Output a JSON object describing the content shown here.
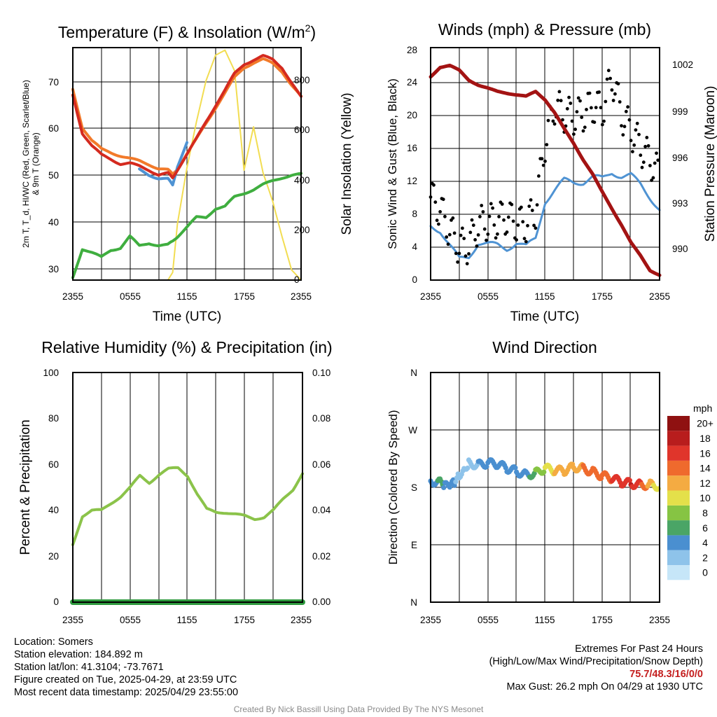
{
  "charts": {
    "temp": {
      "title_main": "Temperature (F) & Insolation (W/m",
      "title_sup": "2",
      "title_end": ")",
      "ylabel_lines": [
        "2m T, T_d, HI/WC (Red, Green, Scarlet/Blue)",
        "& 9m T (Orange)"
      ],
      "y2label": "Solar Insolation (Yellow)",
      "xlabel": "Time (UTC)",
      "yticks": [
        "30",
        "40",
        "50",
        "60",
        "70"
      ],
      "y2ticks": [
        "0",
        "200",
        "400",
        "600",
        "800"
      ],
      "xticks": [
        "2355",
        "0555",
        "1155",
        "1755",
        "2355"
      ]
    },
    "wind": {
      "title": "Winds (mph) & Pressure (mb)",
      "ylabel": "Sonic Wind & Gust (Blue, Black)",
      "y2label": "Station Pressure (Maroon)",
      "xlabel": "Time (UTC)",
      "yticks": [
        "0",
        "4",
        "8",
        "12",
        "16",
        "20",
        "24",
        "28"
      ],
      "y2ticks": [
        "990",
        "993",
        "996",
        "999",
        "1002"
      ],
      "xticks": [
        "2355",
        "0555",
        "1155",
        "1755",
        "2355"
      ]
    },
    "rh": {
      "title": "Relative Humidity (%) & Precipitation (in)",
      "ylabel": "Percent & Precipitation",
      "yticks": [
        "0",
        "20",
        "40",
        "60",
        "80",
        "100"
      ],
      "y2ticks": [
        "0.00",
        "0.02",
        "0.04",
        "0.06",
        "0.08",
        "0.10"
      ],
      "xticks": [
        "2355",
        "0555",
        "1155",
        "1755",
        "2355"
      ]
    },
    "dir": {
      "title": "Wind Direction",
      "ylabel": "Direction (Colored By Speed)",
      "yticks": [
        "N",
        "E",
        "S",
        "W",
        "N"
      ],
      "xticks": [
        "2355",
        "0555",
        "1155",
        "1755",
        "2355"
      ],
      "colorbar_title": "mph",
      "colorbar_labels": [
        "0",
        "2",
        "4",
        "6",
        "8",
        "10",
        "12",
        "14",
        "16",
        "18",
        "20+"
      ],
      "colorbar_colors": [
        "#c6e6f8",
        "#8ec3ea",
        "#4a8fd0",
        "#4aa566",
        "#86c443",
        "#e4e04a",
        "#f4ab42",
        "#ef6a2d",
        "#e0352b",
        "#b81d1d",
        "#8f1111"
      ]
    }
  },
  "chart_data": [
    {
      "type": "line",
      "title": "Temperature (F) & Insolation (W/m2)",
      "xlabel": "Time (UTC)",
      "ylabel": "2m T, Td, HI/WC (Red, Green, Scarlet/Blue) & 9m T (Orange)",
      "y2label": "Solar Insolation (Yellow)",
      "ylim": [
        28,
        77
      ],
      "y2lim": [
        0,
        910
      ],
      "x_categories": [
        "2355",
        "0555",
        "1155",
        "1755",
        "2355"
      ],
      "x_hours": [
        0,
        1,
        2,
        3,
        4,
        5,
        6,
        7,
        8,
        9,
        10,
        10.5,
        11,
        12,
        13,
        14,
        15,
        16,
        17,
        18,
        19,
        20,
        21,
        22,
        23,
        24
      ],
      "series": [
        {
          "name": "2m T",
          "color": "#d42a1f",
          "axis": "left",
          "values": [
            67,
            59,
            56.3,
            54.4,
            53.5,
            52.5,
            52.6,
            52,
            51.2,
            50.2,
            50.5,
            49.5,
            51.3,
            54.5,
            57.8,
            61.4,
            64.8,
            68,
            71.5,
            73.5,
            74.4,
            75.2,
            74.5,
            72.8,
            69.6,
            66.5
          ]
        },
        {
          "name": "9m T",
          "color": "#f27a2a",
          "axis": "left",
          "values": [
            68.2,
            60.2,
            57.4,
            55.6,
            54.9,
            54.2,
            53.6,
            53.1,
            52.4,
            51.5,
            51.2,
            50.3,
            51.5,
            54.6,
            57.7,
            61.1,
            64.3,
            67.4,
            70.7,
            72.8,
            73.8,
            74.5,
            73.7,
            72,
            69.1,
            66.6
          ]
        },
        {
          "name": "Td",
          "color": "#3fae3f",
          "axis": "left",
          "values": [
            28.5,
            34.6,
            33.8,
            32.8,
            34.3,
            34.8,
            37.2,
            35.2,
            35.8,
            35.3,
            35.4,
            36.2,
            37.2,
            39.2,
            41.2,
            41.2,
            43.1,
            43.5,
            45.5,
            46.3,
            47.1,
            48.1,
            48.9,
            49.6,
            50.1,
            50.3
          ]
        },
        {
          "name": "HI/WC",
          "color": "#4f93d3",
          "axis": "left",
          "values": [
            null,
            null,
            null,
            null,
            null,
            null,
            null,
            51.3,
            50.2,
            49.4,
            49.3,
            48,
            52,
            57,
            null,
            null,
            null,
            null,
            null,
            null,
            null,
            null,
            null,
            null,
            null,
            null
          ]
        },
        {
          "name": "Solar Insolation",
          "color": "#f2dd52",
          "axis": "right",
          "values": [
            0,
            0,
            0,
            0,
            0,
            0,
            0,
            0,
            0,
            0,
            0,
            30,
            220,
            440,
            620,
            780,
            880,
            900,
            820,
            430,
            600,
            420,
            310,
            170,
            40,
            0
          ]
        }
      ]
    },
    {
      "type": "line",
      "title": "Winds (mph) & Pressure (mb)",
      "xlabel": "Time (UTC)",
      "ylabel": "Sonic Wind & Gust (Blue, Black)",
      "y2label": "Station Pressure (Maroon)",
      "ylim": [
        0,
        28
      ],
      "y2lim": [
        989,
        1003.3
      ],
      "x_categories": [
        "2355",
        "0555",
        "1155",
        "1755",
        "2355"
      ],
      "x_hours": [
        0,
        1,
        2,
        3,
        4,
        5,
        6,
        7,
        8,
        9,
        10,
        11,
        12,
        13,
        14,
        15,
        16,
        17,
        18,
        19,
        20,
        21,
        22,
        23,
        24
      ],
      "series": [
        {
          "name": "Sonic Wind",
          "color": "#4f93d3",
          "axis": "left",
          "values": [
            6.5,
            6,
            4.2,
            2.5,
            2.8,
            4.5,
            4.3,
            4.2,
            3.8,
            4.5,
            4,
            5,
            9.5,
            10.8,
            12,
            11.8,
            11.8,
            12.4,
            12.2,
            13,
            12.5,
            12.6,
            11.5,
            10,
            8.5
          ]
        },
        {
          "name": "Gust",
          "color": "#000000",
          "axis": "left",
          "values": [
            10,
            8.5,
            6,
            4,
            4.2,
            6.7,
            7,
            7.2,
            7.6,
            6.8,
            6.7,
            8.4,
            16.5,
            21,
            20,
            19.7,
            20,
            21,
            20.5,
            24.5,
            20,
            18,
            16,
            14.5,
            12.5
          ]
        },
        {
          "name": "Station Pressure",
          "color": "#a31313",
          "axis": "right",
          "values": [
            1001.5,
            1002.1,
            1002.2,
            1001.9,
            1001.3,
            1001,
            1000.8,
            1000.6,
            1000.5,
            1000.4,
            1000.3,
            1000.6,
            1000.1,
            999.3,
            998.3,
            997.4,
            996.4,
            995.5,
            994.4,
            993.4,
            992.4,
            991.3,
            990.5,
            989.6,
            989.3
          ]
        }
      ]
    },
    {
      "type": "line",
      "title": "Relative Humidity (%) & Precipitation (in)",
      "ylabel": "Percent & Precipitation",
      "ylim": [
        0,
        100
      ],
      "y2lim": [
        0,
        0.1
      ],
      "x_categories": [
        "2355",
        "0555",
        "1155",
        "1755",
        "2355"
      ],
      "x_hours": [
        0,
        1,
        2,
        3,
        4,
        5,
        6,
        7,
        8,
        9,
        10,
        11,
        12,
        13,
        14,
        15,
        16,
        17,
        18,
        19,
        20,
        21,
        22,
        23,
        24
      ],
      "series": [
        {
          "name": "Relative Humidity",
          "color": "#8bc34a",
          "axis": "left",
          "values": [
            25,
            37.5,
            40,
            40,
            43,
            46,
            50,
            55,
            52,
            55.5,
            58,
            58.5,
            55,
            47,
            40.5,
            39.2,
            39,
            38.3,
            37.5,
            36.2,
            37,
            40.2,
            45,
            49,
            56
          ]
        },
        {
          "name": "Precipitation",
          "color": "#2e9a3e",
          "axis": "right",
          "values": [
            0,
            0,
            0,
            0,
            0,
            0,
            0,
            0,
            0,
            0,
            0,
            0,
            0,
            0,
            0,
            0,
            0,
            0,
            0,
            0,
            0,
            0,
            0,
            0,
            0
          ]
        }
      ]
    },
    {
      "type": "scatter",
      "title": "Wind Direction",
      "ylabel": "Direction (Colored By Speed)",
      "y_categories": [
        "N",
        "E",
        "S",
        "W",
        "N"
      ],
      "ylim": [
        0,
        360
      ],
      "x_categories": [
        "2355",
        "0555",
        "1155",
        "1755",
        "2355"
      ],
      "x_hours": [
        0,
        1,
        1.5,
        2,
        2.5,
        3,
        3.5,
        4,
        5,
        6,
        7,
        8,
        9,
        10,
        11,
        12,
        13,
        14,
        15,
        16,
        17,
        18,
        19,
        20,
        21,
        22,
        23,
        24
      ],
      "series": [
        {
          "name": "Wind direction",
          "values": [
            190,
            188,
            182,
            180,
            188,
            200,
            210,
            218,
            215,
            218,
            216,
            210,
            205,
            200,
            202,
            210,
            206,
            206,
            212,
            210,
            204,
            198,
            194,
            188,
            186,
            184,
            184,
            182
          ],
          "speeds": [
            3,
            6,
            4,
            4,
            3,
            2,
            1,
            1,
            3,
            4,
            4,
            4,
            3,
            4,
            7,
            9,
            11,
            12,
            12,
            13,
            14,
            14,
            15,
            16,
            17,
            15,
            12,
            9
          ]
        }
      ]
    }
  ],
  "footer": {
    "location": "Location: Somers",
    "elevation": "Station elevation: 184.892 m",
    "latlon": "Station lat/lon: 41.3104; -73.7671",
    "created": "Figure created on Tue, 2025-04-29, at 23:59 UTC",
    "recent": "Most recent data timestamp: 2025/04/29 23:55:00",
    "extremes_title": "Extremes For Past 24 Hours",
    "extremes_subtitle": "(High/Low/Max Wind/Precipitation/Snow Depth)",
    "extremes_values": "75.7/48.3/16/0/0",
    "max_gust": "Max Gust: 26.2 mph On 04/29 at 1930 UTC",
    "credit": "Created By Nick Bassill Using Data Provided By The NYS Mesonet"
  }
}
